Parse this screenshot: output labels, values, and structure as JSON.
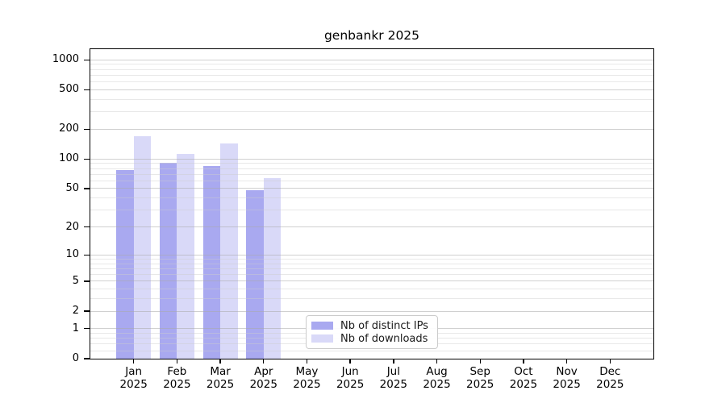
{
  "chart_data": {
    "type": "bar",
    "title": "genbankr 2025",
    "categories": [
      "Jan 2025",
      "Feb 2025",
      "Mar 2025",
      "Apr 2025",
      "May 2025",
      "Jun 2025",
      "Jul 2025",
      "Aug 2025",
      "Sep 2025",
      "Oct 2025",
      "Nov 2025",
      "Dec 2025"
    ],
    "series": [
      {
        "name": "Nb of distinct IPs",
        "color": "#a9a9f0",
        "values": [
          78,
          91,
          85,
          48,
          null,
          null,
          null,
          null,
          null,
          null,
          null,
          null
        ]
      },
      {
        "name": "Nb of downloads",
        "color": "#d9d9f8",
        "values": [
          170,
          113,
          145,
          64,
          null,
          null,
          null,
          null,
          null,
          null,
          null,
          null
        ]
      }
    ],
    "xlabel": "",
    "ylabel": "",
    "y_scale": "log10(1 + y)",
    "ylim": [
      0,
      1280
    ],
    "y_major_ticks": [
      0,
      1,
      2,
      5,
      10,
      20,
      50,
      100,
      200,
      500,
      1000
    ],
    "y_minor_gridlines": [
      0.2,
      0.4,
      0.6,
      0.8,
      3,
      4,
      6,
      7,
      8,
      9,
      30,
      40,
      60,
      70,
      80,
      90,
      300,
      400,
      600,
      700,
      800,
      900
    ],
    "grid": true,
    "legend_position": "inside-bottom-center"
  }
}
